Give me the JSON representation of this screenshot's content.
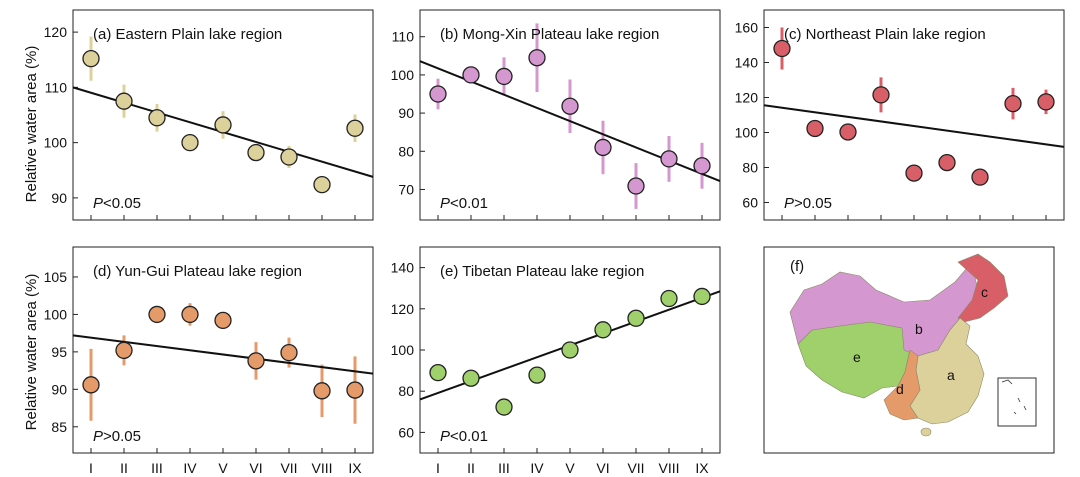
{
  "figure": {
    "ylabel": "Relative water area (%)",
    "map_panel": {
      "title": "(f)",
      "region_labels": [
        {
          "key": "a",
          "color": "#ddd19b"
        },
        {
          "key": "b",
          "color": "#d597cf"
        },
        {
          "key": "c",
          "color": "#d85f68"
        },
        {
          "key": "d",
          "color": "#e59a6a"
        },
        {
          "key": "e",
          "color": "#9fd06b"
        }
      ]
    }
  },
  "chart_data": [
    {
      "type": "scatter",
      "title": "(a) Eastern Plain lake region",
      "p_label_prefix": "P",
      "p_label_suffix": "<0.05",
      "categories": [
        "I",
        "II",
        "III",
        "IV",
        "V",
        "VI",
        "VII",
        "VIII",
        "IX"
      ],
      "values": [
        115.2,
        107.5,
        104.5,
        100,
        103.2,
        98.2,
        97.4,
        92.4,
        102.6
      ],
      "err": [
        4,
        3,
        2.5,
        0,
        2.5,
        0,
        2,
        0,
        2.5
      ],
      "trend": [
        110,
        93.8
      ],
      "ylim": [
        86,
        124
      ],
      "yticks": [
        90,
        100,
        110,
        120
      ],
      "marker_color": "#ddd19b",
      "err_color": "#ddd19b",
      "xticks_shown": false
    },
    {
      "type": "scatter",
      "title": "(b) Mong-Xin Plateau lake region",
      "p_label_prefix": "P",
      "p_label_suffix": "<0.01",
      "categories": [
        "I",
        "II",
        "III",
        "IV",
        "V",
        "VI",
        "VII",
        "VIII",
        "IX"
      ],
      "values": [
        95,
        100,
        99.6,
        104.5,
        91.8,
        81,
        70.9,
        78,
        76.2
      ],
      "err": [
        4,
        2,
        5,
        9,
        7,
        7,
        6,
        6,
        6
      ],
      "trend": [
        103.6,
        72.2
      ],
      "ylim": [
        62,
        117
      ],
      "yticks": [
        70,
        80,
        90,
        100,
        110
      ],
      "marker_color": "#d597cf",
      "err_color": "#d597cf",
      "xticks_shown": false
    },
    {
      "type": "scatter",
      "title": "(c) Northeast Plain lake region",
      "p_label_prefix": "P",
      "p_label_suffix": ">0.05",
      "categories": [
        "I",
        "II",
        "III",
        "IV",
        "V",
        "VI",
        "VII",
        "VIII",
        "IX"
      ],
      "values": [
        148,
        102.3,
        100.3,
        121.5,
        76.8,
        82.8,
        74.5,
        116.5,
        117.5
      ],
      "err": [
        12,
        0,
        0,
        10,
        0,
        0,
        0,
        9,
        7
      ],
      "trend": [
        115.6,
        91.8
      ],
      "ylim": [
        50,
        170
      ],
      "yticks": [
        60,
        80,
        100,
        120,
        140,
        160
      ],
      "marker_color": "#d85f68",
      "err_color": "#d85f68",
      "xticks_shown": false
    },
    {
      "type": "scatter",
      "title": "(d) Yun-Gui Plateau lake region",
      "p_label_prefix": "P",
      "p_label_suffix": ">0.05",
      "categories": [
        "I",
        "II",
        "III",
        "IV",
        "V",
        "VI",
        "VII",
        "VIII",
        "IX"
      ],
      "values": [
        90.6,
        95.2,
        100,
        100,
        99.2,
        93.8,
        94.9,
        89.8,
        89.9
      ],
      "err": [
        4.8,
        2,
        0,
        1.5,
        0,
        2.5,
        2,
        3.5,
        4.5
      ],
      "trend": [
        97.2,
        92.1
      ],
      "ylim": [
        81.5,
        109
      ],
      "yticks": [
        85,
        90,
        95,
        100,
        105
      ],
      "marker_color": "#e59a6a",
      "err_color": "#e59a6a",
      "xticks_shown": true
    },
    {
      "type": "scatter",
      "title": "(e) Tibetan Plateau lake region",
      "p_label_prefix": "P",
      "p_label_suffix": "<0.01",
      "categories": [
        "I",
        "II",
        "III",
        "IV",
        "V",
        "VI",
        "VII",
        "VIII",
        "IX"
      ],
      "values": [
        89,
        86.3,
        72.3,
        87.8,
        100,
        109.8,
        115.4,
        125,
        126
      ],
      "err": [
        0,
        0,
        0,
        0,
        0,
        0,
        0,
        0,
        0
      ],
      "trend": [
        76,
        128.5
      ],
      "ylim": [
        50,
        150
      ],
      "yticks": [
        60,
        80,
        100,
        120,
        140
      ],
      "marker_color": "#9fd06b",
      "err_color": "#9fd06b",
      "xticks_shown": true
    }
  ]
}
